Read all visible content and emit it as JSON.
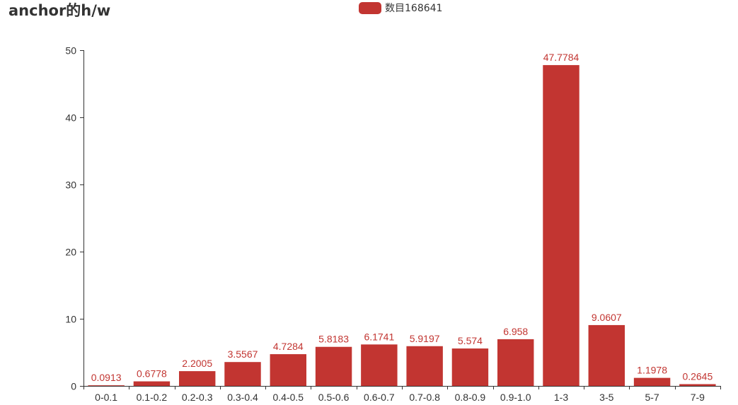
{
  "chart_data": {
    "type": "bar",
    "title": "anchor的h/w",
    "legend": {
      "entries": [
        "数目168641"
      ],
      "placement": "top-center"
    },
    "xlabel": "",
    "ylabel": "",
    "ylim": [
      0,
      50
    ],
    "yticks": [
      0,
      10,
      20,
      30,
      40,
      50
    ],
    "grid": false,
    "categories": [
      "0-0.1",
      "0.1-0.2",
      "0.2-0.3",
      "0.3-0.4",
      "0.4-0.5",
      "0.5-0.6",
      "0.6-0.7",
      "0.7-0.8",
      "0.8-0.9",
      "0.9-1.0",
      "1-3",
      "3-5",
      "5-7",
      "7-9"
    ],
    "series": [
      {
        "name": "数目168641",
        "color": "#c23531",
        "values": [
          0.0913,
          0.6778,
          2.2005,
          3.5567,
          4.7284,
          5.8183,
          6.1741,
          5.9197,
          5.574,
          6.958,
          47.7784,
          9.0607,
          1.1978,
          0.2645
        ],
        "labels": [
          "0.0913",
          "0.6778",
          "2.2005",
          "3.5567",
          "4.7284",
          "5.8183",
          "6.1741",
          "5.9197",
          "5.574",
          "6.958",
          "47.7784",
          "9.0607",
          "1.1978",
          "0.2645"
        ]
      }
    ],
    "axis_color": "#333333"
  }
}
